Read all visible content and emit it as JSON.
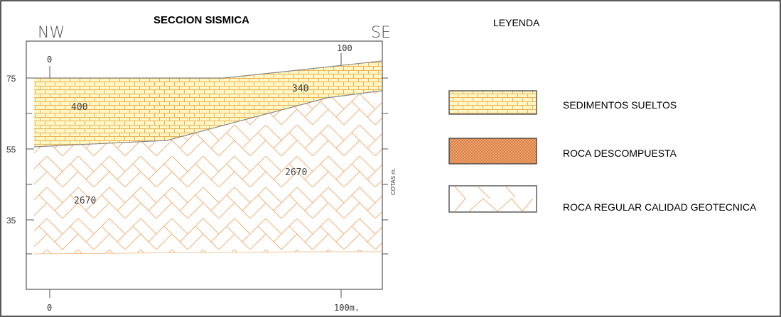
{
  "diagram": {
    "title": "SECCION SISMICA",
    "dir_left": "NW",
    "dir_right": "SE",
    "top_tick_0": "0",
    "top_tick_100": "100",
    "bottom_tick_0": "0",
    "bottom_tick_100": "100m.",
    "elev_75": "75",
    "elev_55": "55",
    "elev_35": "35",
    "right_axis_label": "COTAS m.",
    "velocities": {
      "sediments_left": "400",
      "sediments_right": "340",
      "rock_left": "2670",
      "rock_right": "2670"
    }
  },
  "legend": {
    "title": "LEYENDA",
    "items": [
      {
        "label": "SEDIMENTOS SUELTOS",
        "pattern": "sediments"
      },
      {
        "label": "ROCA DESCOMPUESTA",
        "pattern": "decomposed"
      },
      {
        "label": "ROCA REGULAR CALIDAD GEOTECNICA",
        "pattern": "rock"
      }
    ]
  },
  "colors": {
    "sediment_fill": "#fff6c4",
    "sediment_line": "#e8b25a",
    "rock_line": "#f0b27a",
    "decomposed_fill": "#f2a36b",
    "frame": "#222222"
  }
}
